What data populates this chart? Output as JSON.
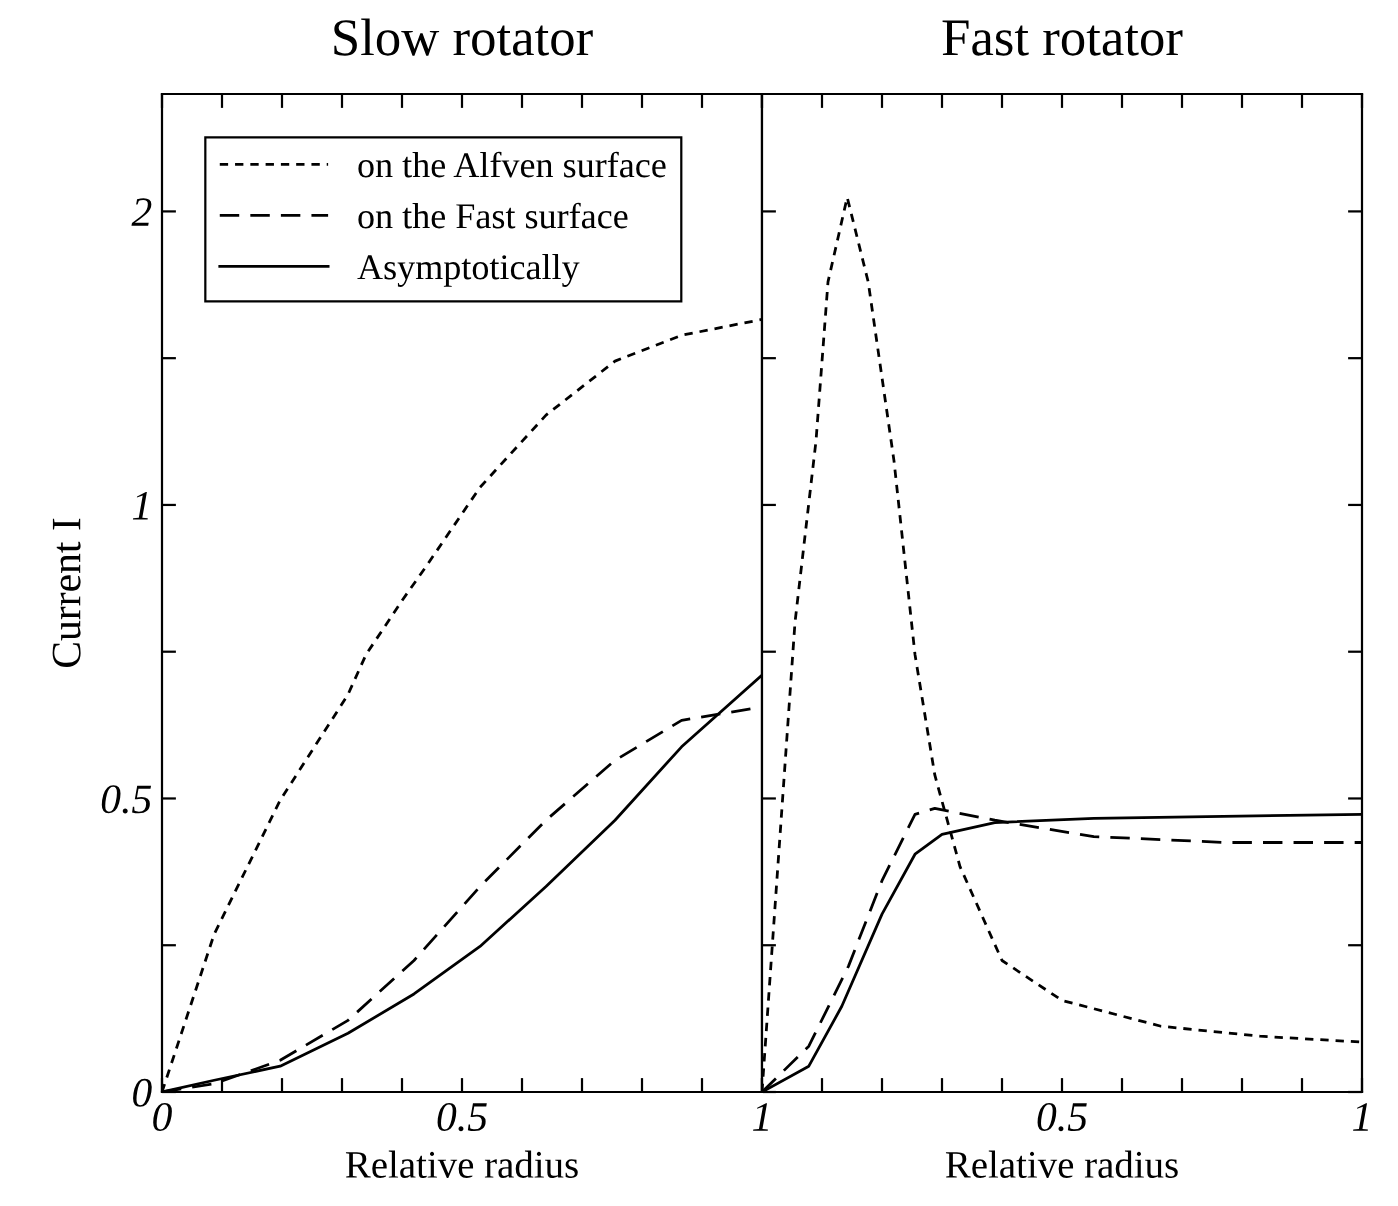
{
  "chart_data": [
    {
      "type": "line",
      "title": "Slow rotator",
      "xlabel": "Relative radius",
      "ylabel": "Current I",
      "legend": "top left",
      "tick_labels": true,
      "xlim": [
        0,
        1
      ],
      "ylim": [
        0,
        1.7
      ],
      "xticks": [
        0,
        {
          "value": 0.1,
          "label": null
        },
        {
          "value": 0.2,
          "label": null
        },
        {
          "value": 0.3,
          "label": null
        },
        {
          "value": 0.4,
          "label": null
        },
        0.5,
        {
          "value": 0.6,
          "label": null
        },
        {
          "value": 0.7,
          "label": null
        },
        {
          "value": 0.8,
          "label": null
        },
        {
          "value": 0.9,
          "label": null
        },
        1
      ],
      "yticks": [
        0,
        {
          "value": 0.25,
          "label": null
        },
        0.5,
        {
          "value": 0.75,
          "label": null
        },
        1,
        {
          "value": 1.25,
          "label": null
        },
        {
          "value": 1.5,
          "label": "2"
        }
      ],
      "series": [
        {
          "name": "on the Alfven surface",
          "color": "#000000",
          "line_style": "dotted",
          "x": [
            0,
            0.087,
            0.197,
            0.31,
            0.34,
            0.4,
            0.44,
            0.53,
            0.64,
            0.755,
            0.866,
            1
          ],
          "values": [
            0,
            0.269,
            0.497,
            0.677,
            0.745,
            0.837,
            0.895,
            1.03,
            1.153,
            1.245,
            1.289,
            1.316
          ]
        },
        {
          "name": "on the Fast surface",
          "color": "#000000",
          "line_style": "dashed",
          "x": [
            0,
            0.087,
            0.197,
            0.31,
            0.42,
            0.53,
            0.64,
            0.755,
            0.866,
            1
          ],
          "values": [
            0,
            0.014,
            0.054,
            0.122,
            0.224,
            0.35,
            0.463,
            0.565,
            0.633,
            0.656
          ]
        },
        {
          "name": "Asymptotically",
          "color": "#000000",
          "line_style": "solid",
          "x": [
            0,
            0.087,
            0.197,
            0.31,
            0.42,
            0.53,
            0.64,
            0.755,
            0.866,
            1
          ],
          "values": [
            0,
            0.02,
            0.044,
            0.1,
            0.167,
            0.248,
            0.35,
            0.463,
            0.588,
            0.71
          ]
        }
      ]
    },
    {
      "type": "line",
      "title": "Fast rotator",
      "xlabel": "Relative radius",
      "tick_labels": "x",
      "xlim": [
        0,
        1
      ],
      "ylim": [
        0,
        1.7
      ],
      "xticks": [
        {
          "value": 0,
          "label": null
        },
        {
          "value": 0.1,
          "label": null
        },
        {
          "value": 0.2,
          "label": null
        },
        {
          "value": 0.3,
          "label": null
        },
        {
          "value": 0.4,
          "label": null
        },
        0.5,
        {
          "value": 0.6,
          "label": null
        },
        {
          "value": 0.7,
          "label": null
        },
        {
          "value": 0.8,
          "label": null
        },
        {
          "value": 0.9,
          "label": null
        },
        1
      ],
      "yticks": [
        {
          "value": 0,
          "label": null
        },
        {
          "value": 0.25,
          "label": null
        },
        {
          "value": 0.5,
          "label": null
        },
        {
          "value": 0.75,
          "label": null
        },
        {
          "value": 1,
          "label": null
        },
        {
          "value": 1.25,
          "label": null
        },
        {
          "value": 1.5,
          "label": null
        }
      ],
      "series": [
        {
          "color": "#000000",
          "line_style": "dotted",
          "x": [
            0,
            0.055,
            0.09,
            0.11,
            0.142,
            0.177,
            0.22,
            0.255,
            0.288,
            0.33,
            0.4,
            0.5,
            0.665,
            0.83,
            1
          ],
          "values": [
            0,
            0.8,
            1.109,
            1.38,
            1.524,
            1.38,
            1.075,
            0.745,
            0.54,
            0.384,
            0.224,
            0.156,
            0.112,
            0.095,
            0.085
          ]
        },
        {
          "color": "#000000",
          "line_style": "dashed",
          "x": [
            0,
            0.078,
            0.144,
            0.2,
            0.255,
            0.288,
            0.388,
            0.553,
            0.773,
            1
          ],
          "values": [
            0,
            0.078,
            0.214,
            0.36,
            0.473,
            0.483,
            0.463,
            0.435,
            0.425,
            0.425
          ]
        },
        {
          "color": "#000000",
          "line_style": "solid",
          "x": [
            0,
            0.078,
            0.133,
            0.2,
            0.255,
            0.3,
            0.388,
            0.553,
            1
          ],
          "values": [
            0,
            0.044,
            0.146,
            0.303,
            0.405,
            0.439,
            0.459,
            0.466,
            0.473
          ]
        }
      ]
    }
  ]
}
